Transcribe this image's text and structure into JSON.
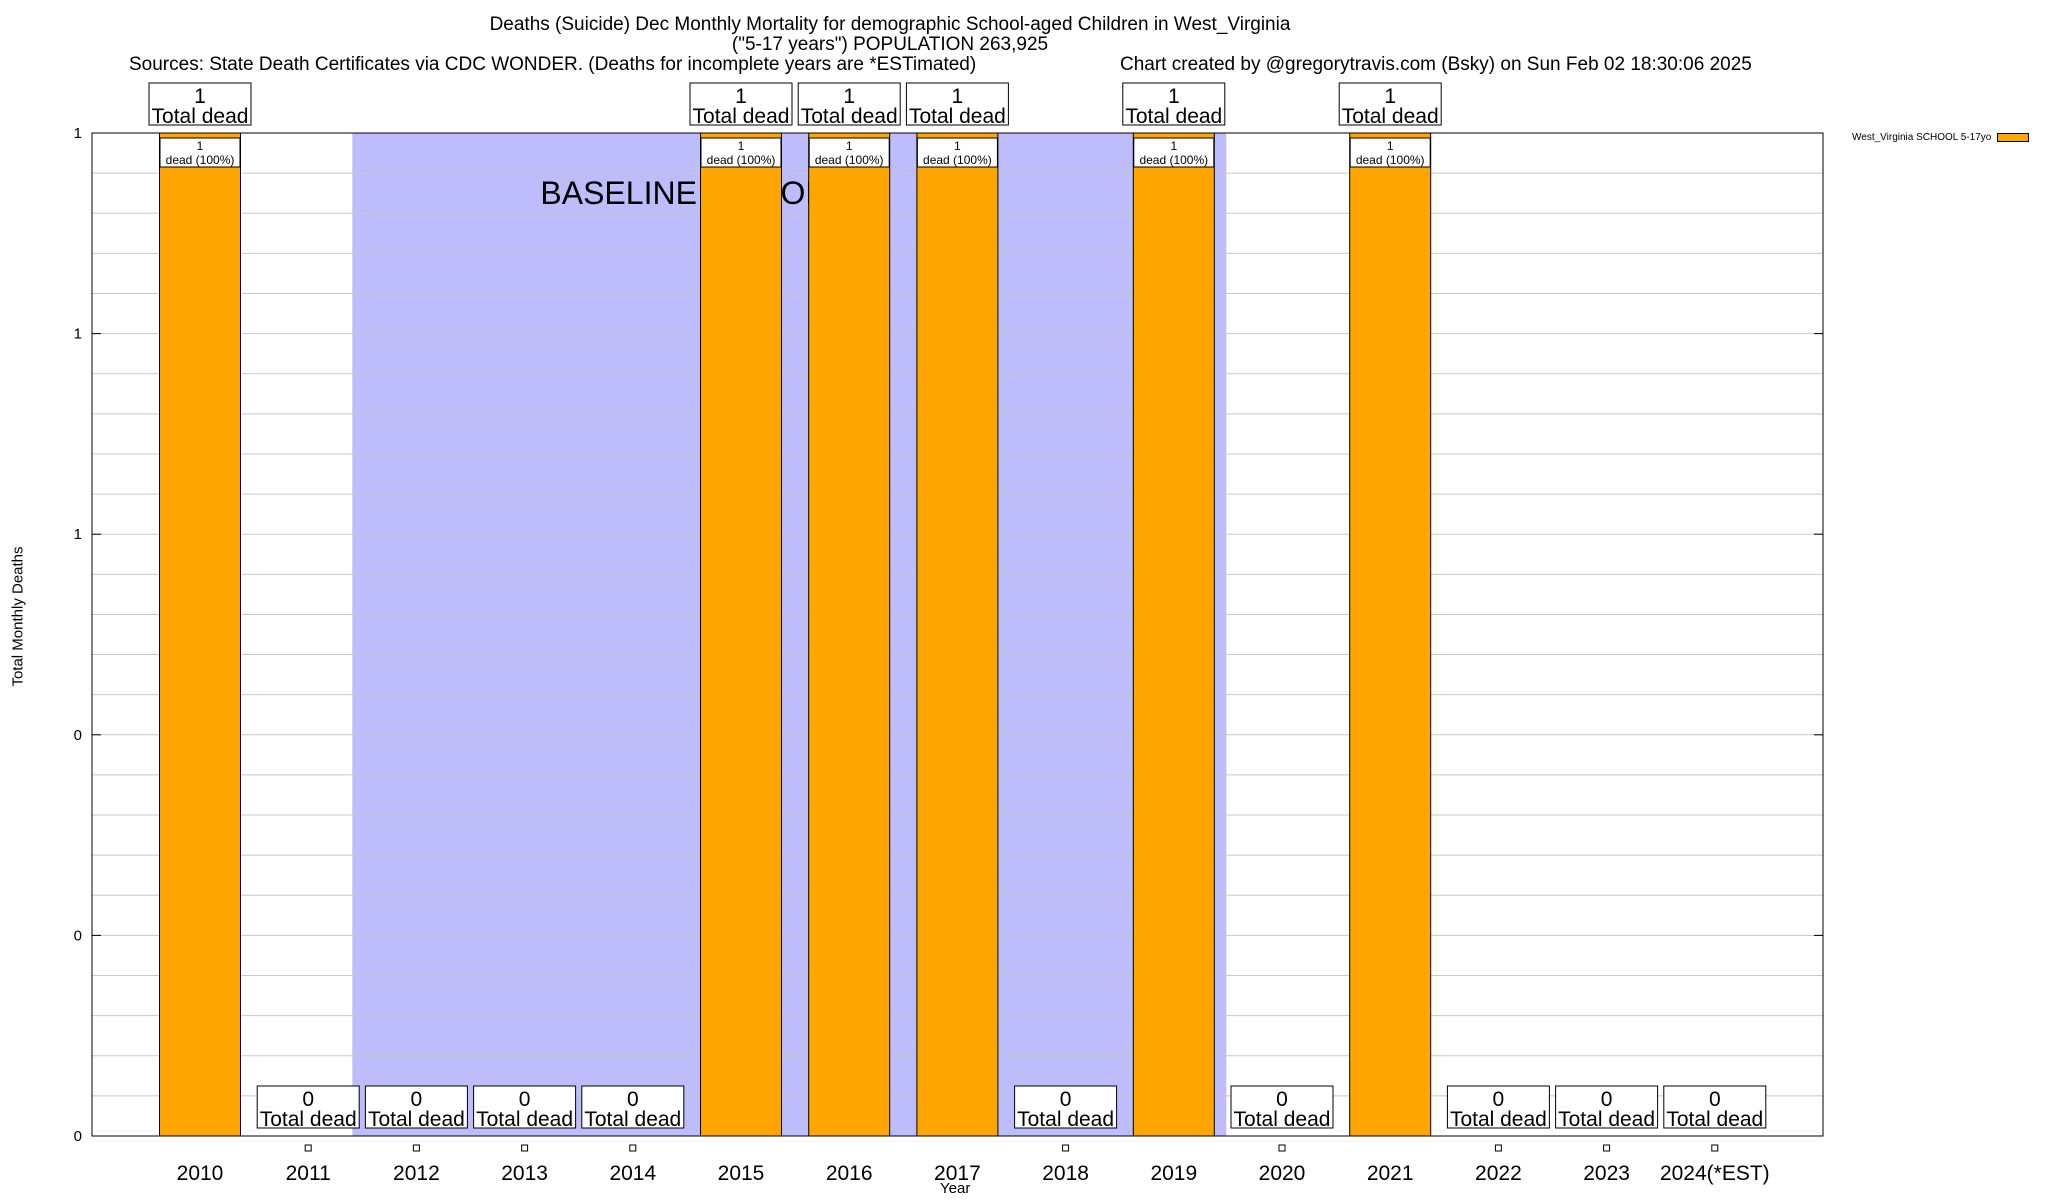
{
  "header": {
    "title_line1": "Deaths (Suicide) Dec Monthly Mortality for demographic School-aged Children in West_Virginia",
    "title_line2": "(\"5-17 years\") POPULATION 263,925",
    "sources": "Sources: State Death Certificates via CDC WONDER. (Deaths for incomplete years are *ESTimated)",
    "credit": "Chart created by @gregorytravis.com (Bsky) on Sun Feb 02 18:30:06 2025"
  },
  "colors": {
    "bar": "#FFA500",
    "baseline": "#BDBDFB",
    "grid": "#C8C8C8"
  },
  "chart_data": {
    "type": "bar",
    "xlabel": "Year",
    "ylabel": "Total Monthly Deaths",
    "ylim": [
      0,
      1
    ],
    "yticks": [
      0,
      0.2,
      0.4,
      0.6,
      0.8,
      1
    ],
    "ytick_labels": [
      "0",
      "0",
      "0",
      "1",
      "1",
      "1"
    ],
    "categories": [
      "2010",
      "2011",
      "2012",
      "2013",
      "2014",
      "2015",
      "2016",
      "2017",
      "2018",
      "2019",
      "2020",
      "2021",
      "2022",
      "2023",
      "2024(*EST)"
    ],
    "series": [
      {
        "name": "West_Virginia SCHOOL 5-17yo",
        "values": [
          1,
          0,
          0,
          0,
          0,
          1,
          1,
          1,
          0,
          1,
          0,
          1,
          0,
          0,
          0
        ]
      }
    ],
    "top_labels": [
      [
        "1",
        "Total dead"
      ],
      [
        "0",
        "Total dead"
      ],
      [
        "0",
        "Total dead"
      ],
      [
        "0",
        "Total dead"
      ],
      [
        "0",
        "Total dead"
      ],
      [
        "1",
        "Total dead"
      ],
      [
        "1",
        "Total dead"
      ],
      [
        "1",
        "Total dead"
      ],
      [
        "0",
        "Total dead"
      ],
      [
        "1",
        "Total dead"
      ],
      [
        "0",
        "Total dead"
      ],
      [
        "1",
        "Total dead"
      ],
      [
        "0",
        "Total dead"
      ],
      [
        "0",
        "Total dead"
      ],
      [
        "0",
        "Total dead"
      ]
    ],
    "inner_labels": [
      [
        "1",
        "dead (100%)"
      ],
      null,
      null,
      null,
      null,
      [
        "1",
        "dead (100%)"
      ],
      [
        "1",
        "dead (100%)"
      ],
      [
        "1",
        "dead (100%)"
      ],
      null,
      [
        "1",
        "dead (100%)"
      ],
      null,
      [
        "1",
        "dead (100%)"
      ],
      null,
      null,
      null
    ],
    "annotation": "BASELINE PERIOD",
    "baseline_period": [
      "2012",
      "2019"
    ],
    "legend_position": "top-right",
    "grid": true
  }
}
